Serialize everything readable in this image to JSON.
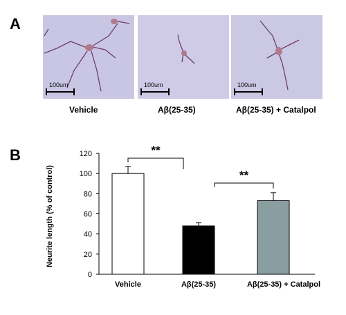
{
  "panel_a": {
    "letter": "A",
    "scale_label": "100um",
    "captions": [
      "Vehicle",
      "Aβ(25-35)",
      "Aβ(25-35)  + Catalpol"
    ]
  },
  "panel_b": {
    "letter": "B",
    "significance": [
      "**",
      "**"
    ]
  },
  "colors": {
    "micro_bg": "#c9c6e4",
    "neurite": "#6a3d6e",
    "soma": "#b07a8c",
    "bar_vehicle": "#ffffff",
    "bar_abeta": "#000000",
    "bar_catalpol": "#8a9ea1"
  },
  "chart_data": {
    "type": "bar",
    "categories": [
      "Vehicle",
      "Aβ(25-35)",
      "Aβ(25-35)  + Catalpol"
    ],
    "values": [
      100,
      48,
      73
    ],
    "errors": [
      7,
      3,
      8
    ],
    "ylabel": "Neurite length (% of control)",
    "xlabel": "",
    "ylim": [
      0,
      120
    ],
    "yticks": [
      0,
      20,
      40,
      60,
      80,
      100,
      120
    ],
    "grid": false
  }
}
